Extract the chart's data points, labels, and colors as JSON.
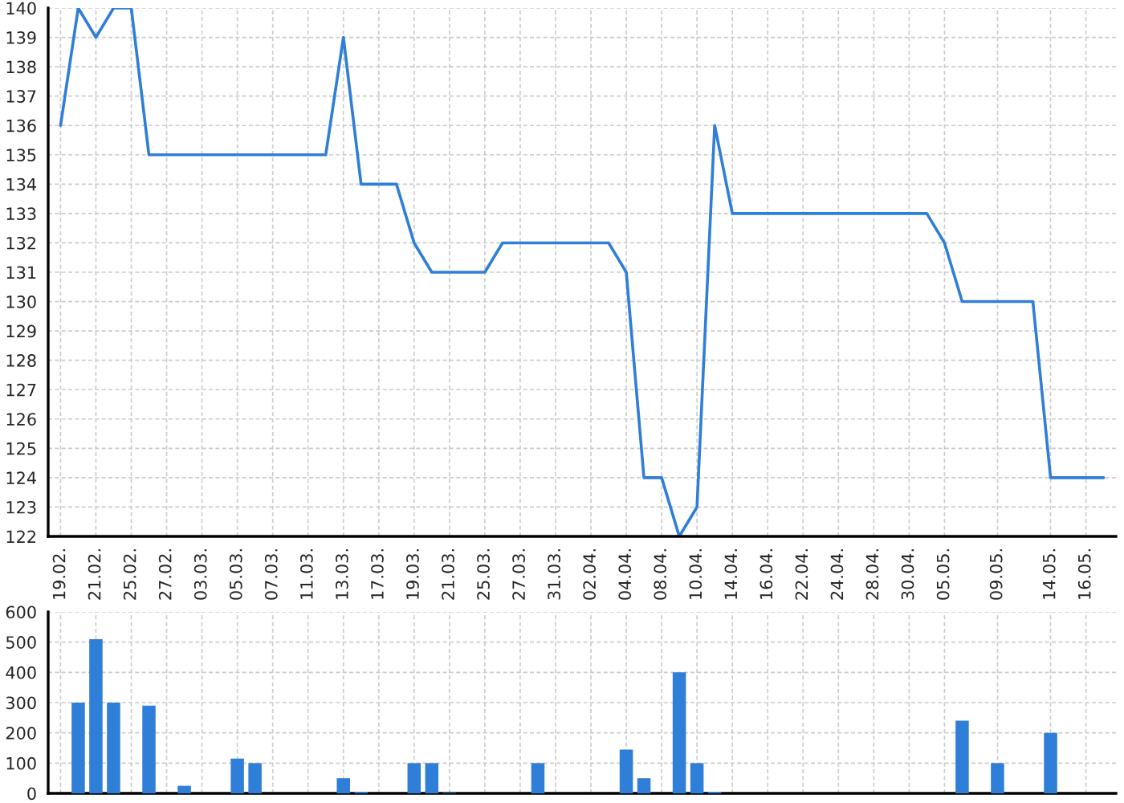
{
  "chart_data": [
    {
      "type": "line",
      "color": "#2f7ed8",
      "grid": true,
      "ylim": [
        122,
        140
      ],
      "yticks": [
        122,
        123,
        124,
        125,
        126,
        127,
        128,
        129,
        130,
        131,
        132,
        133,
        134,
        135,
        136,
        137,
        138,
        139,
        140
      ],
      "categories": [
        "19.02.",
        null,
        "21.02.",
        null,
        "25.02.",
        null,
        "27.02.",
        null,
        "03.03.",
        null,
        "05.03.",
        null,
        "07.03.",
        null,
        "11.03.",
        null,
        "13.03.",
        null,
        "17.03.",
        null,
        "19.03.",
        null,
        "21.03.",
        null,
        "25.03.",
        null,
        "27.03.",
        null,
        "31.03.",
        null,
        "02.04.",
        null,
        "04.04.",
        null,
        "08.04.",
        null,
        "10.04.",
        null,
        "14.04.",
        null,
        "16.04.",
        null,
        "22.04.",
        null,
        "24.04.",
        null,
        "28.04.",
        null,
        "30.04.",
        null,
        "05.05.",
        null,
        null,
        "09.05.",
        null,
        null,
        "14.05.",
        null,
        "16.05.",
        null
      ],
      "values": [
        136,
        140,
        139,
        140,
        140,
        135,
        135,
        135,
        135,
        135,
        135,
        135,
        135,
        135,
        135,
        135,
        139,
        134,
        134,
        134,
        132,
        131,
        131,
        131,
        131,
        132,
        132,
        132,
        132,
        132,
        132,
        132,
        131,
        124,
        124,
        122,
        123,
        136,
        133,
        133,
        133,
        133,
        133,
        133,
        133,
        133,
        133,
        133,
        133,
        133,
        132,
        130,
        130,
        130,
        130,
        130,
        124,
        124,
        124,
        124
      ]
    },
    {
      "type": "bar",
      "color": "#2f7ed8",
      "grid": true,
      "tick_labels": "y",
      "ylim": [
        0,
        600
      ],
      "yticks": [
        0,
        100,
        200,
        300,
        400,
        500,
        600
      ],
      "categories": [
        "19.02.",
        null,
        "21.02.",
        null,
        "25.02.",
        null,
        "27.02.",
        null,
        "03.03.",
        null,
        "05.03.",
        null,
        "07.03.",
        null,
        "11.03.",
        null,
        "13.03.",
        null,
        "17.03.",
        null,
        "19.03.",
        null,
        "21.03.",
        null,
        "25.03.",
        null,
        "27.03.",
        null,
        "31.03.",
        null,
        "02.04.",
        null,
        "04.04.",
        null,
        "08.04.",
        null,
        "10.04.",
        null,
        "14.04.",
        null,
        "16.04.",
        null,
        "22.04.",
        null,
        "24.04.",
        null,
        "28.04.",
        null,
        "30.04.",
        null,
        "05.05.",
        null,
        null,
        "09.05.",
        null,
        null,
        "14.05.",
        null,
        "16.05.",
        null
      ],
      "values": [
        0,
        300,
        510,
        300,
        0,
        290,
        0,
        25,
        0,
        0,
        115,
        100,
        0,
        0,
        0,
        0,
        50,
        5,
        0,
        0,
        100,
        100,
        2,
        0,
        0,
        0,
        0,
        100,
        0,
        0,
        0,
        0,
        145,
        50,
        0,
        400,
        100,
        5,
        0,
        0,
        0,
        0,
        0,
        0,
        0,
        0,
        0,
        0,
        0,
        0,
        0,
        240,
        0,
        100,
        0,
        0,
        200,
        0,
        0,
        0
      ]
    }
  ]
}
